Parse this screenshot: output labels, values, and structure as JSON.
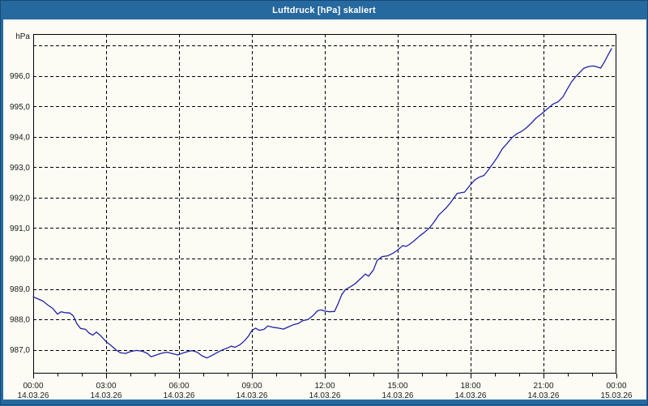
{
  "window": {
    "title": "Luftdruck [hPa] skaliert"
  },
  "colors": {
    "frame": "#26699f",
    "frame_edge": "#164a77",
    "panel": "#fcfcf5",
    "grid": "#000000",
    "text": "#1a1a1a",
    "line": "#1f23a8"
  },
  "chart_data": {
    "type": "line",
    "title": "Luftdruck [hPa] skaliert",
    "xlabel": "",
    "ylabel": "hPa",
    "grid": true,
    "legend": "none",
    "y_axis": {
      "unit": "hPa",
      "decimal_separator": "comma",
      "gridline_values": [
        987,
        988,
        989,
        990,
        991,
        992,
        993,
        994,
        995,
        996,
        997
      ],
      "tick_values": [
        987,
        988,
        989,
        990,
        991,
        992,
        993,
        994,
        995,
        996
      ],
      "tick_labels": [
        "987,0",
        "988,0",
        "989,0",
        "990,0",
        "991,0",
        "992,0",
        "993,0",
        "994,0",
        "995,0",
        "996,0"
      ],
      "range_shown": [
        986.2,
        997.35
      ]
    },
    "x_axis": {
      "span_hours": 24,
      "minor_tick_every_hours": 1,
      "major_tick_every_hours": 3,
      "tick_labels": [
        {
          "time": "00:00",
          "date": "14.03.26"
        },
        {
          "time": "03:00",
          "date": "14.03.26"
        },
        {
          "time": "06:00",
          "date": "14.03.26"
        },
        {
          "time": "09:00",
          "date": "14.03.26"
        },
        {
          "time": "12:00",
          "date": "14.03.26"
        },
        {
          "time": "15:00",
          "date": "14.03.26"
        },
        {
          "time": "18:00",
          "date": "14.03.26"
        },
        {
          "time": "21:00",
          "date": "14.03.26"
        },
        {
          "time": "00:00",
          "date": "15.03.26"
        }
      ]
    },
    "series": [
      {
        "name": "Luftdruck",
        "color": "#1f23a8",
        "points_time_hours_value_hpa": [
          [
            0.0,
            988.74
          ],
          [
            0.2,
            988.67
          ],
          [
            0.4,
            988.6
          ],
          [
            0.6,
            988.47
          ],
          [
            0.8,
            988.36
          ],
          [
            1.0,
            988.17
          ],
          [
            1.15,
            988.25
          ],
          [
            1.3,
            988.22
          ],
          [
            1.5,
            988.21
          ],
          [
            1.65,
            988.12
          ],
          [
            1.8,
            987.85
          ],
          [
            1.95,
            987.7
          ],
          [
            2.15,
            987.67
          ],
          [
            2.3,
            987.55
          ],
          [
            2.45,
            987.48
          ],
          [
            2.6,
            987.58
          ],
          [
            2.75,
            987.48
          ],
          [
            3.0,
            987.27
          ],
          [
            3.2,
            987.14
          ],
          [
            3.45,
            986.97
          ],
          [
            3.6,
            986.9
          ],
          [
            3.8,
            986.88
          ],
          [
            4.0,
            986.94
          ],
          [
            4.25,
            986.98
          ],
          [
            4.5,
            986.95
          ],
          [
            4.7,
            986.88
          ],
          [
            4.85,
            986.77
          ],
          [
            5.0,
            986.81
          ],
          [
            5.25,
            986.88
          ],
          [
            5.5,
            986.92
          ],
          [
            5.75,
            986.87
          ],
          [
            5.95,
            986.83
          ],
          [
            6.15,
            986.89
          ],
          [
            6.4,
            986.95
          ],
          [
            6.55,
            986.97
          ],
          [
            6.75,
            986.92
          ],
          [
            6.95,
            986.8
          ],
          [
            7.15,
            986.73
          ],
          [
            7.35,
            986.81
          ],
          [
            7.6,
            986.92
          ],
          [
            7.8,
            987.0
          ],
          [
            8.0,
            987.06
          ],
          [
            8.15,
            987.12
          ],
          [
            8.3,
            987.08
          ],
          [
            8.5,
            987.16
          ],
          [
            8.7,
            987.3
          ],
          [
            8.85,
            987.44
          ],
          [
            9.0,
            987.63
          ],
          [
            9.15,
            987.71
          ],
          [
            9.3,
            987.64
          ],
          [
            9.5,
            987.67
          ],
          [
            9.65,
            987.78
          ],
          [
            9.85,
            987.74
          ],
          [
            10.05,
            987.72
          ],
          [
            10.3,
            987.68
          ],
          [
            10.5,
            987.75
          ],
          [
            10.7,
            987.82
          ],
          [
            10.9,
            987.86
          ],
          [
            11.1,
            987.96
          ],
          [
            11.3,
            987.99
          ],
          [
            11.5,
            988.11
          ],
          [
            11.7,
            988.28
          ],
          [
            11.85,
            988.31
          ],
          [
            12.0,
            988.27
          ],
          [
            12.2,
            988.25
          ],
          [
            12.4,
            988.26
          ],
          [
            12.55,
            988.52
          ],
          [
            12.7,
            988.82
          ],
          [
            12.85,
            988.98
          ],
          [
            13.05,
            989.07
          ],
          [
            13.25,
            989.17
          ],
          [
            13.5,
            989.36
          ],
          [
            13.67,
            989.49
          ],
          [
            13.8,
            989.42
          ],
          [
            14.0,
            989.62
          ],
          [
            14.15,
            989.93
          ],
          [
            14.35,
            990.06
          ],
          [
            14.6,
            990.09
          ],
          [
            14.8,
            990.17
          ],
          [
            15.0,
            990.28
          ],
          [
            15.2,
            990.42
          ],
          [
            15.35,
            990.4
          ],
          [
            15.5,
            990.47
          ],
          [
            15.7,
            990.6
          ],
          [
            15.9,
            990.74
          ],
          [
            16.1,
            990.86
          ],
          [
            16.3,
            991.0
          ],
          [
            16.5,
            991.2
          ],
          [
            16.7,
            991.44
          ],
          [
            16.85,
            991.55
          ],
          [
            17.0,
            991.67
          ],
          [
            17.17,
            991.83
          ],
          [
            17.3,
            991.98
          ],
          [
            17.45,
            992.14
          ],
          [
            17.75,
            992.18
          ],
          [
            17.9,
            992.33
          ],
          [
            18.0,
            992.43
          ],
          [
            18.17,
            992.58
          ],
          [
            18.35,
            992.67
          ],
          [
            18.55,
            992.73
          ],
          [
            18.7,
            992.88
          ],
          [
            18.9,
            993.1
          ],
          [
            19.1,
            993.33
          ],
          [
            19.3,
            993.6
          ],
          [
            19.5,
            993.78
          ],
          [
            19.7,
            993.97
          ],
          [
            19.9,
            994.1
          ],
          [
            20.1,
            994.18
          ],
          [
            20.3,
            994.3
          ],
          [
            20.5,
            994.45
          ],
          [
            20.7,
            994.62
          ],
          [
            20.9,
            994.74
          ],
          [
            21.0,
            994.81
          ],
          [
            21.2,
            994.95
          ],
          [
            21.4,
            995.08
          ],
          [
            21.6,
            995.15
          ],
          [
            21.8,
            995.31
          ],
          [
            22.0,
            995.6
          ],
          [
            22.15,
            995.8
          ],
          [
            22.3,
            995.95
          ],
          [
            22.5,
            996.12
          ],
          [
            22.65,
            996.25
          ],
          [
            22.85,
            996.31
          ],
          [
            23.05,
            996.33
          ],
          [
            23.2,
            996.3
          ],
          [
            23.35,
            996.26
          ],
          [
            23.5,
            996.45
          ],
          [
            23.65,
            996.68
          ],
          [
            23.8,
            996.9
          ]
        ]
      }
    ]
  }
}
